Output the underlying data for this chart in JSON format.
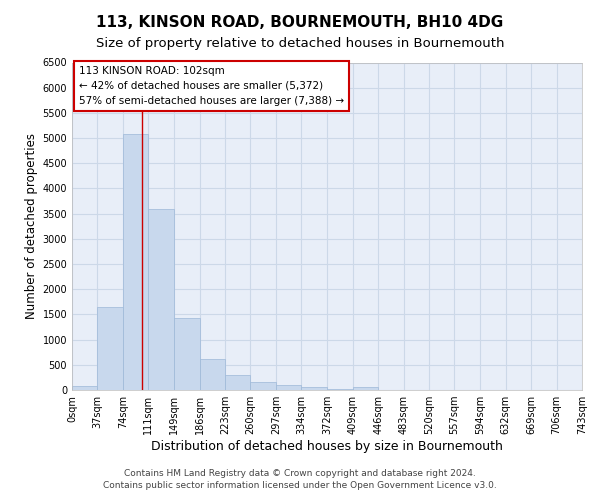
{
  "title": "113, KINSON ROAD, BOURNEMOUTH, BH10 4DG",
  "subtitle": "Size of property relative to detached houses in Bournemouth",
  "xlabel": "Distribution of detached houses by size in Bournemouth",
  "ylabel": "Number of detached properties",
  "footer_line1": "Contains HM Land Registry data © Crown copyright and database right 2024.",
  "footer_line2": "Contains public sector information licensed under the Open Government Licence v3.0.",
  "bar_edges": [
    0,
    37,
    74,
    111,
    149,
    186,
    223,
    260,
    297,
    334,
    372,
    409,
    446,
    483,
    520,
    557,
    594,
    632,
    669,
    706,
    743
  ],
  "bar_heights": [
    75,
    1650,
    5080,
    3590,
    1420,
    620,
    305,
    155,
    95,
    55,
    20,
    60,
    0,
    0,
    0,
    0,
    0,
    0,
    0,
    0
  ],
  "bar_color": "#c8d8ed",
  "bar_edge_color": "#9db8d8",
  "property_line_x": 102,
  "property_line_color": "#cc0000",
  "annotation_line1": "113 KINSON ROAD: 102sqm",
  "annotation_line2": "← 42% of detached houses are smaller (5,372)",
  "annotation_line3": "57% of semi-detached houses are larger (7,388) →",
  "annotation_box_color": "#cc0000",
  "ylim": [
    0,
    6500
  ],
  "xlim": [
    0,
    743
  ],
  "yticks": [
    0,
    500,
    1000,
    1500,
    2000,
    2500,
    3000,
    3500,
    4000,
    4500,
    5000,
    5500,
    6000,
    6500
  ],
  "xtick_labels": [
    "0sqm",
    "37sqm",
    "74sqm",
    "111sqm",
    "149sqm",
    "186sqm",
    "223sqm",
    "260sqm",
    "297sqm",
    "334sqm",
    "372sqm",
    "409sqm",
    "446sqm",
    "483sqm",
    "520sqm",
    "557sqm",
    "594sqm",
    "632sqm",
    "669sqm",
    "706sqm",
    "743sqm"
  ],
  "xtick_positions": [
    0,
    37,
    74,
    111,
    149,
    186,
    223,
    260,
    297,
    334,
    372,
    409,
    446,
    483,
    520,
    557,
    594,
    632,
    669,
    706,
    743
  ],
  "grid_color": "#ccd8e8",
  "background_color": "#e8eef8",
  "title_fontsize": 11,
  "subtitle_fontsize": 9.5,
  "xlabel_fontsize": 9,
  "ylabel_fontsize": 8.5,
  "tick_fontsize": 7,
  "footer_fontsize": 6.5
}
